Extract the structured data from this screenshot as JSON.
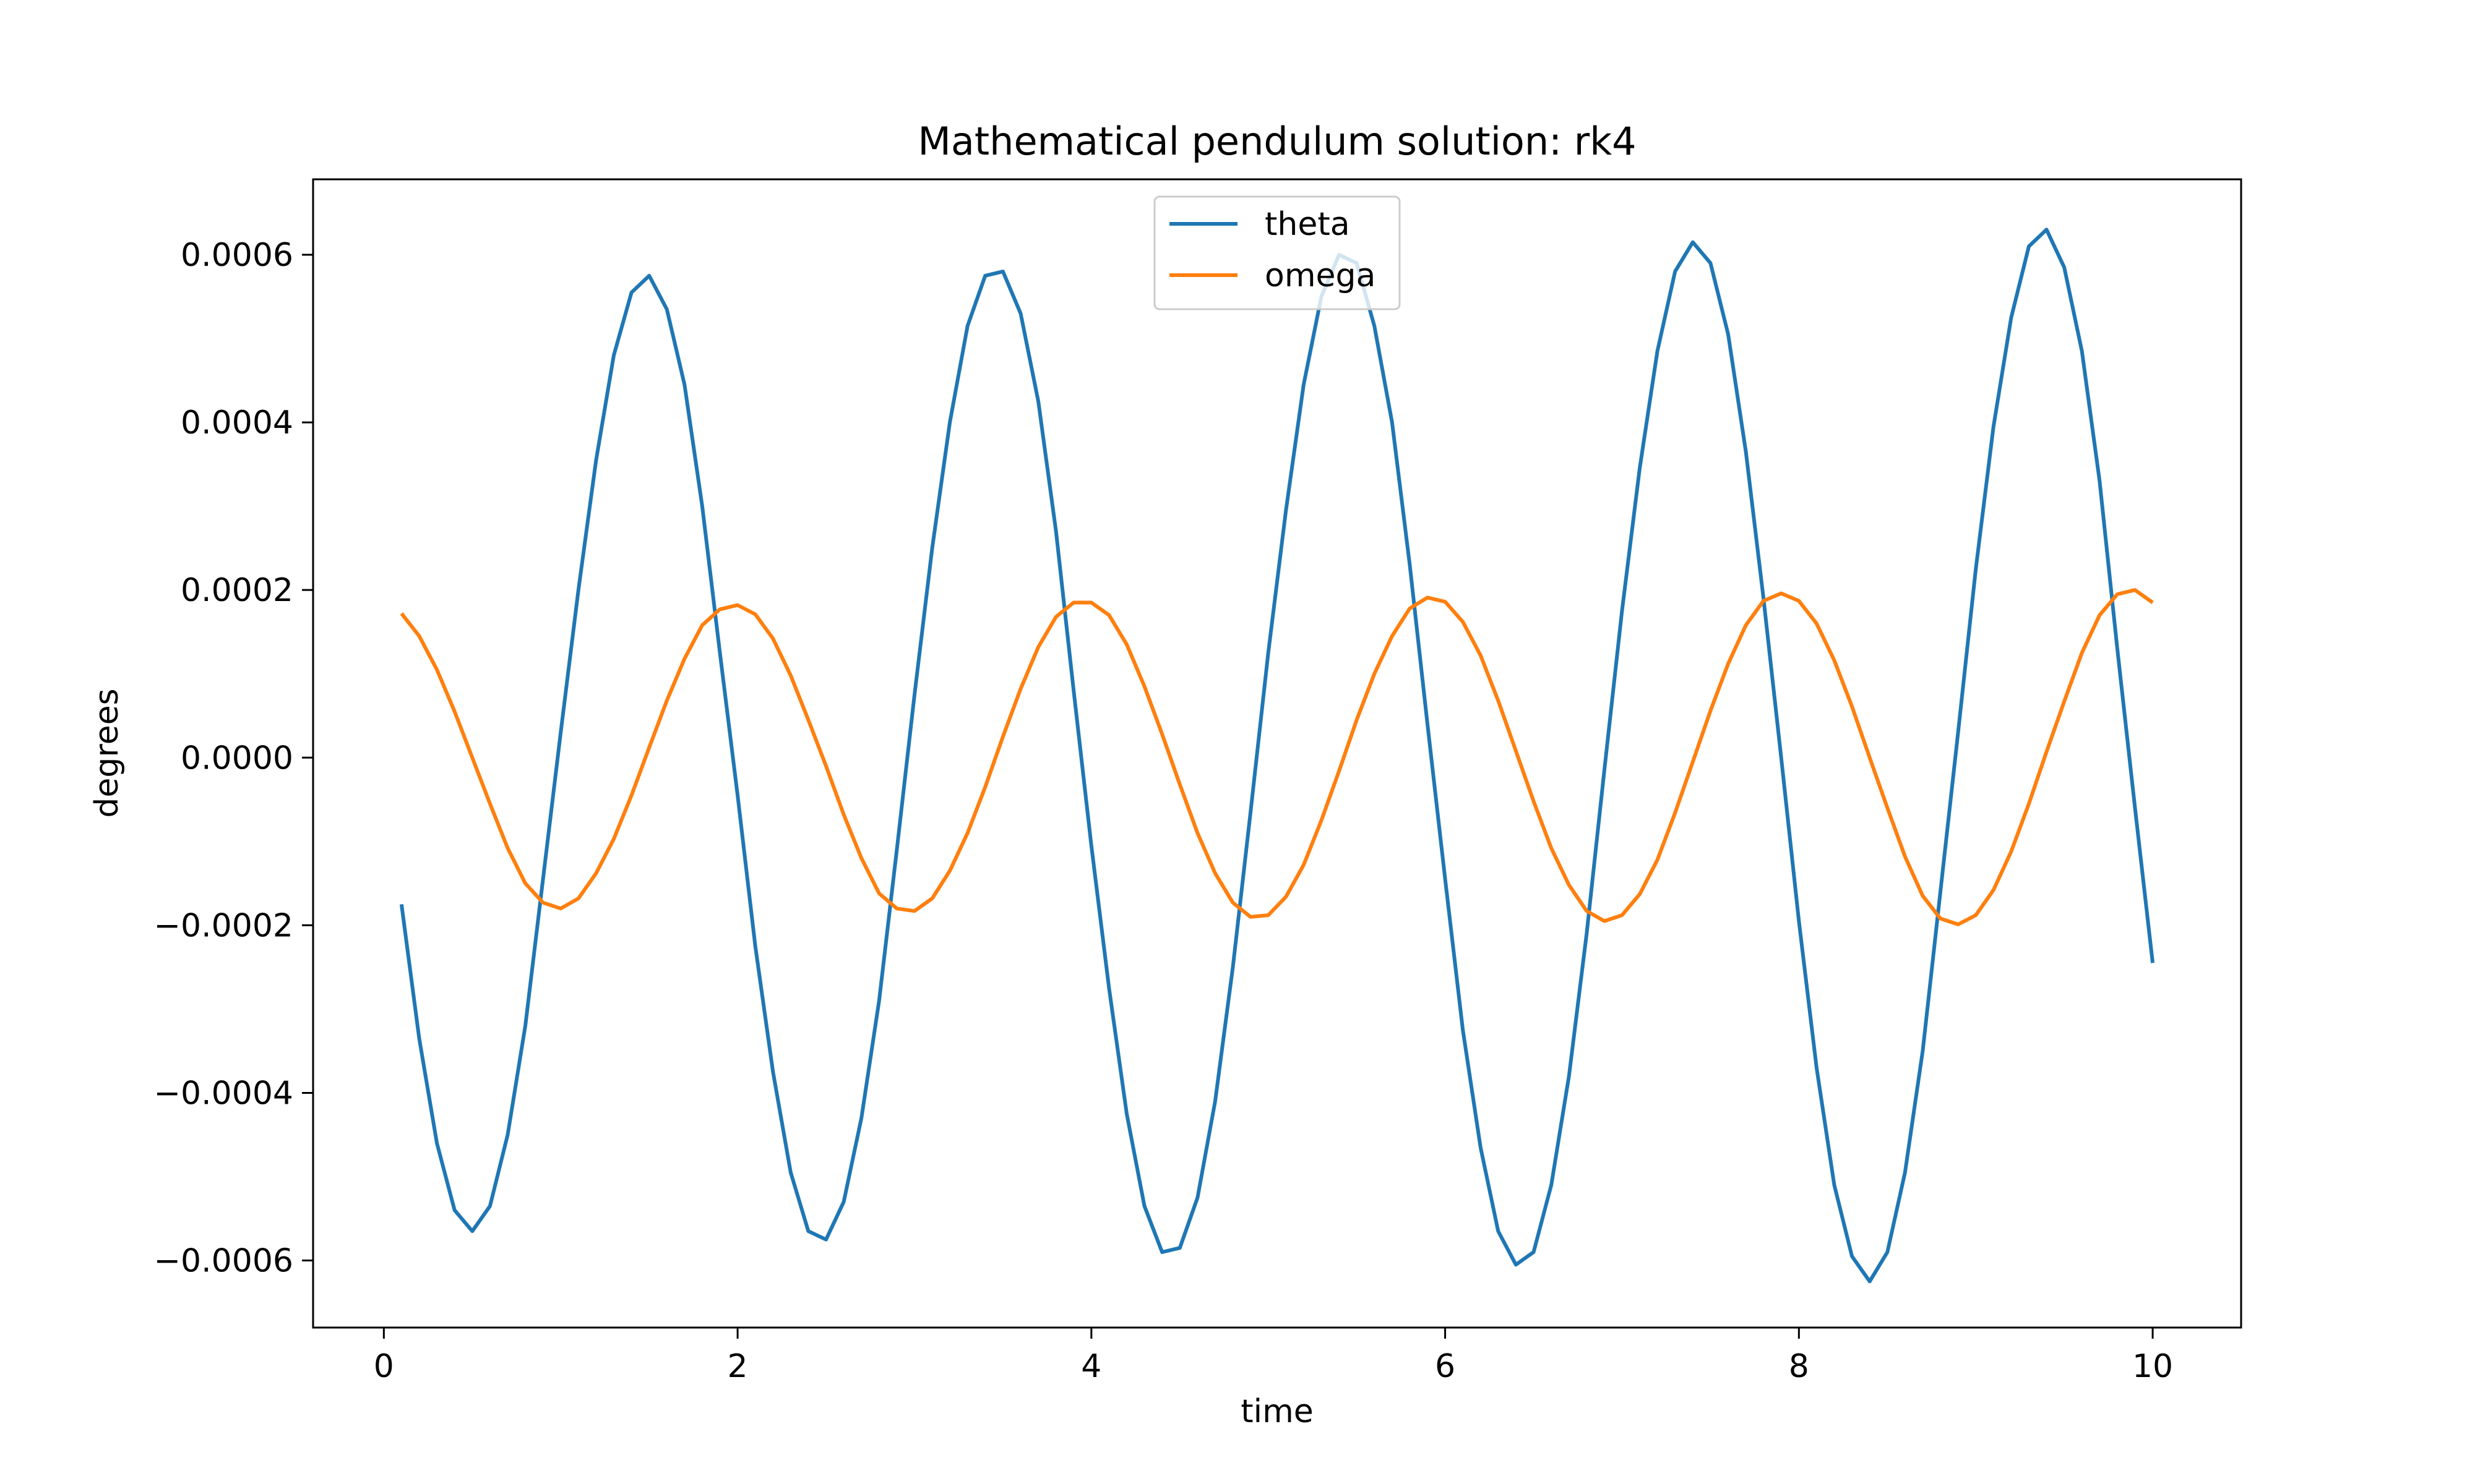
{
  "chart_data": {
    "type": "line",
    "title": "Mathematical pendulum solution: rk4",
    "xlabel": "time",
    "ylabel": "degrees",
    "xlim": [
      -0.4,
      10.5
    ],
    "ylim": [
      -0.00068,
      0.00069
    ],
    "x_ticks": [
      {
        "value": 0,
        "label": "0"
      },
      {
        "value": 2,
        "label": "2"
      },
      {
        "value": 4,
        "label": "4"
      },
      {
        "value": 6,
        "label": "6"
      },
      {
        "value": 8,
        "label": "8"
      },
      {
        "value": 10,
        "label": "10"
      }
    ],
    "y_ticks": [
      {
        "value": -0.0006,
        "label": "−0.0006"
      },
      {
        "value": -0.0004,
        "label": "−0.0004"
      },
      {
        "value": -0.0002,
        "label": "−0.0002"
      },
      {
        "value": 0.0,
        "label": "0.0000"
      },
      {
        "value": 0.0002,
        "label": "0.0002"
      },
      {
        "value": 0.0004,
        "label": "0.0004"
      },
      {
        "value": 0.0006,
        "label": "0.0006"
      }
    ],
    "grid": false,
    "legend_position": "upper-center",
    "x": [
      0.1,
      0.2,
      0.3,
      0.4,
      0.5,
      0.6,
      0.7,
      0.8,
      0.9,
      1.0,
      1.1,
      1.2,
      1.3,
      1.4,
      1.5,
      1.6,
      1.7,
      1.8,
      1.9,
      2.0,
      2.1,
      2.2,
      2.3,
      2.4,
      2.5,
      2.6,
      2.7,
      2.8,
      2.9,
      3.0,
      3.1,
      3.2,
      3.3,
      3.4,
      3.5,
      3.6,
      3.7,
      3.8,
      3.9,
      4.0,
      4.1,
      4.2,
      4.3,
      4.4,
      4.5,
      4.6,
      4.7,
      4.8,
      4.9,
      5.0,
      5.1,
      5.2,
      5.3,
      5.4,
      5.5,
      5.6,
      5.7,
      5.8,
      5.9,
      6.0,
      6.1,
      6.2,
      6.3,
      6.4,
      6.5,
      6.6,
      6.7,
      6.8,
      6.9,
      7.0,
      7.1,
      7.2,
      7.3,
      7.4,
      7.5,
      7.6,
      7.7,
      7.8,
      7.9,
      8.0,
      8.1,
      8.2,
      8.3,
      8.4,
      8.5,
      8.6,
      8.7,
      8.8,
      8.9,
      9.0,
      9.1,
      9.2,
      9.3,
      9.4,
      9.5,
      9.6,
      9.7,
      9.8,
      9.9,
      10.0
    ],
    "series": [
      {
        "name": "theta",
        "color": "#1f77b4",
        "values": [
          -0.000175,
          -0.000335,
          -0.00046,
          -0.00054,
          -0.000565,
          -0.000535,
          -0.00045,
          -0.00032,
          -0.000145,
          3e-05,
          0.0002,
          0.000355,
          0.00048,
          0.000555,
          0.000575,
          0.000535,
          0.000445,
          0.0003,
          0.000125,
          -4.5e-05,
          -0.000225,
          -0.000375,
          -0.000495,
          -0.000565,
          -0.000575,
          -0.00053,
          -0.00043,
          -0.00029,
          -0.00011,
          7.5e-05,
          0.00025,
          0.0004,
          0.000515,
          0.000575,
          0.00058,
          0.00053,
          0.000425,
          0.00027,
          8e-05,
          -0.000105,
          -0.000275,
          -0.000425,
          -0.000535,
          -0.00059,
          -0.000585,
          -0.000525,
          -0.00041,
          -0.00025,
          -6.5e-05,
          0.000125,
          0.000295,
          0.000445,
          0.00055,
          0.0006,
          0.00059,
          0.000515,
          0.0004,
          0.00023,
          4e-05,
          -0.000145,
          -0.000325,
          -0.000465,
          -0.000565,
          -0.000605,
          -0.00059,
          -0.00051,
          -0.00038,
          -0.00021,
          -1.5e-05,
          0.000175,
          0.000345,
          0.000485,
          0.00058,
          0.000615,
          0.00059,
          0.000505,
          0.000365,
          0.00019,
          0.0,
          -0.000195,
          -0.00037,
          -0.00051,
          -0.000595,
          -0.000625,
          -0.00059,
          -0.000495,
          -0.00035,
          -0.00016,
          3e-05,
          0.000225,
          0.000395,
          0.000525,
          0.00061,
          0.00063,
          0.000585,
          0.000485,
          0.00033,
          0.00013,
          -6e-05,
          -0.000245
        ]
      },
      {
        "name": "omega",
        "color": "#ff7f0e",
        "values": [
          0.000172,
          0.000145,
          0.000105,
          5.5e-05,
          0.0,
          -5.5e-05,
          -0.000108,
          -0.00015,
          -0.000173,
          -0.00018,
          -0.000168,
          -0.000138,
          -9.7e-05,
          -4.5e-05,
          1.2e-05,
          6.8e-05,
          0.000118,
          0.000158,
          0.000177,
          0.000182,
          0.000171,
          0.000142,
          9.8e-05,
          4.5e-05,
          -1e-05,
          -6.8e-05,
          -0.00012,
          -0.000162,
          -0.00018,
          -0.000183,
          -0.000168,
          -0.000135,
          -9e-05,
          -3.5e-05,
          2.5e-05,
          8.2e-05,
          0.000132,
          0.000168,
          0.000185,
          0.000185,
          0.00017,
          0.000135,
          8.5e-05,
          2.8e-05,
          -3.2e-05,
          -9e-05,
          -0.000138,
          -0.000173,
          -0.00019,
          -0.000188,
          -0.000166,
          -0.000128,
          -7.5e-05,
          -1.6e-05,
          4.5e-05,
          0.0001,
          0.000145,
          0.000178,
          0.000191,
          0.000186,
          0.000162,
          0.000122,
          6.8e-05,
          8e-06,
          -5.2e-05,
          -0.000108,
          -0.000152,
          -0.000183,
          -0.000195,
          -0.000188,
          -0.000163,
          -0.000122,
          -6.6e-05,
          -5e-06,
          5.6e-05,
          0.000112,
          0.000158,
          0.000187,
          0.000196,
          0.000187,
          0.00016,
          0.000116,
          6.1e-05,
          0.0,
          -6e-05,
          -0.000118,
          -0.000165,
          -0.000192,
          -0.000199,
          -0.000188,
          -0.000158,
          -0.000112,
          -5.5e-05,
          7e-06,
          6.7e-05,
          0.000125,
          0.00017,
          0.000195,
          0.0002,
          0.000185
        ]
      }
    ]
  }
}
